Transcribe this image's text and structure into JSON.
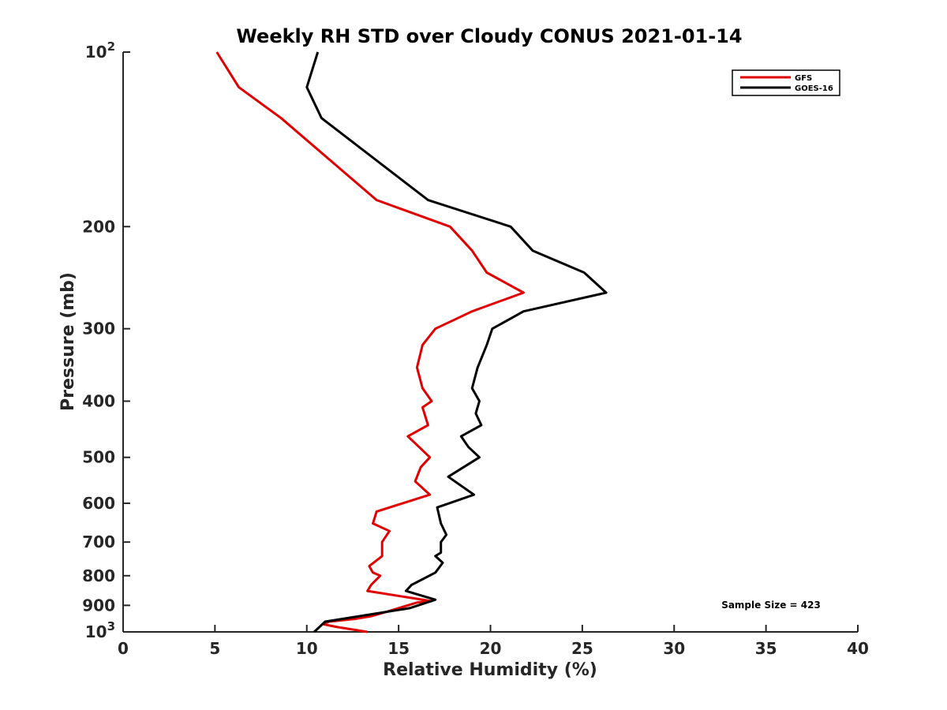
{
  "chart_data": {
    "type": "line",
    "title": "Weekly RH STD over Cloudy CONUS 2021-01-14",
    "xlabel": "Relative Humidity (%)",
    "ylabel": "Pressure (mb)",
    "xlim": [
      0,
      40
    ],
    "ylim": [
      100,
      1000
    ],
    "y_scale": "log",
    "y_reversed": true,
    "x_ticks": [
      "0",
      "5",
      "10",
      "15",
      "20",
      "25",
      "30",
      "35",
      "40"
    ],
    "y_ticks": [
      {
        "value": 100,
        "label": "10",
        "sup": "2"
      },
      {
        "value": 200,
        "label": "200",
        "sup": ""
      },
      {
        "value": 300,
        "label": "300",
        "sup": ""
      },
      {
        "value": 400,
        "label": "400",
        "sup": ""
      },
      {
        "value": 500,
        "label": "500",
        "sup": ""
      },
      {
        "value": 600,
        "label": "600",
        "sup": ""
      },
      {
        "value": 700,
        "label": "700",
        "sup": ""
      },
      {
        "value": 800,
        "label": "800",
        "sup": ""
      },
      {
        "value": 900,
        "label": "900",
        "sup": ""
      },
      {
        "value": 1000,
        "label": "10",
        "sup": "3"
      }
    ],
    "legend_position": "top-right",
    "annotation": "Sample Size = 423",
    "series": [
      {
        "name": "GFS",
        "color": "#e00000",
        "points": [
          [
            5.1,
            100
          ],
          [
            6.3,
            115
          ],
          [
            8.6,
            130
          ],
          [
            13.8,
            180
          ],
          [
            17.8,
            200
          ],
          [
            19.0,
            220
          ],
          [
            19.8,
            240
          ],
          [
            21.8,
            260
          ],
          [
            19.0,
            280
          ],
          [
            17.0,
            300
          ],
          [
            16.3,
            320
          ],
          [
            16.0,
            350
          ],
          [
            16.3,
            380
          ],
          [
            16.8,
            400
          ],
          [
            16.3,
            410
          ],
          [
            16.6,
            440
          ],
          [
            15.5,
            460
          ],
          [
            16.7,
            500
          ],
          [
            16.2,
            520
          ],
          [
            15.9,
            550
          ],
          [
            16.7,
            580
          ],
          [
            13.8,
            620
          ],
          [
            13.6,
            650
          ],
          [
            14.5,
            670
          ],
          [
            14.1,
            700
          ],
          [
            14.1,
            740
          ],
          [
            13.4,
            770
          ],
          [
            13.6,
            790
          ],
          [
            14.0,
            800
          ],
          [
            13.5,
            830
          ],
          [
            13.3,
            850
          ],
          [
            15.3,
            870
          ],
          [
            16.8,
            885
          ],
          [
            16.0,
            890
          ],
          [
            14.5,
            920
          ],
          [
            13.5,
            940
          ],
          [
            12.6,
            950
          ],
          [
            11.2,
            960
          ],
          [
            10.9,
            970
          ],
          [
            11.6,
            980
          ],
          [
            13.3,
            1000
          ]
        ]
      },
      {
        "name": "GOES-16",
        "color": "#000000",
        "points": [
          [
            10.6,
            100
          ],
          [
            10.0,
            115
          ],
          [
            10.8,
            130
          ],
          [
            16.6,
            180
          ],
          [
            21.1,
            200
          ],
          [
            22.3,
            220
          ],
          [
            25.1,
            240
          ],
          [
            26.3,
            260
          ],
          [
            21.8,
            280
          ],
          [
            20.1,
            300
          ],
          [
            19.8,
            320
          ],
          [
            19.3,
            350
          ],
          [
            19.0,
            380
          ],
          [
            19.4,
            400
          ],
          [
            19.2,
            420
          ],
          [
            19.5,
            440
          ],
          [
            18.4,
            460
          ],
          [
            18.8,
            480
          ],
          [
            19.4,
            500
          ],
          [
            17.7,
            540
          ],
          [
            19.1,
            580
          ],
          [
            17.1,
            610
          ],
          [
            17.3,
            650
          ],
          [
            17.6,
            680
          ],
          [
            17.3,
            700
          ],
          [
            17.3,
            730
          ],
          [
            17.0,
            740
          ],
          [
            17.4,
            760
          ],
          [
            17.0,
            790
          ],
          [
            15.7,
            830
          ],
          [
            15.4,
            850
          ],
          [
            16.2,
            865
          ],
          [
            17.0,
            880
          ],
          [
            15.6,
            910
          ],
          [
            11.0,
            960
          ],
          [
            10.7,
            980
          ],
          [
            10.4,
            1000
          ]
        ]
      }
    ]
  }
}
